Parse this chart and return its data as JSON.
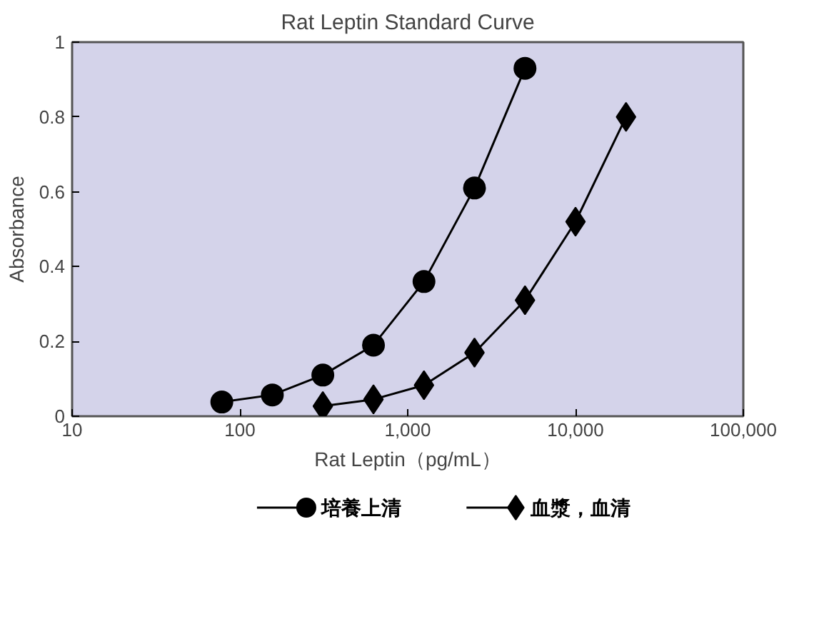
{
  "chart_data": {
    "type": "line",
    "title": "Rat Leptin Standard Curve",
    "xlabel": "Rat Leptin（pg/mL）",
    "ylabel": "Absorbance",
    "log": "x",
    "xlim": [
      10,
      100000
    ],
    "ylim": [
      0,
      1
    ],
    "xticks": [
      10,
      100,
      {
        "value": 1000,
        "label": "1,000"
      },
      {
        "value": 10000,
        "label": "10,000"
      },
      {
        "value": 100000,
        "label": "100,000"
      }
    ],
    "yticks": [
      0,
      0.2,
      0.4,
      0.6,
      0.8,
      1
    ],
    "grid": false,
    "legend": "bottom",
    "series": [
      {
        "name": "培養上清",
        "color": "#000000",
        "marker": "circle",
        "x": [
          78,
          156,
          312,
          625,
          1250,
          2500,
          5000
        ],
        "values": [
          0.038,
          0.057,
          0.11,
          0.19,
          0.36,
          0.61,
          0.93
        ]
      },
      {
        "name": "血漿，血清",
        "color": "#000000",
        "marker": "diamond",
        "x": [
          312,
          625,
          1250,
          2500,
          5000,
          10000,
          20000
        ],
        "values": [
          0.027,
          0.045,
          0.083,
          0.17,
          0.31,
          0.52,
          0.8
        ]
      }
    ]
  }
}
